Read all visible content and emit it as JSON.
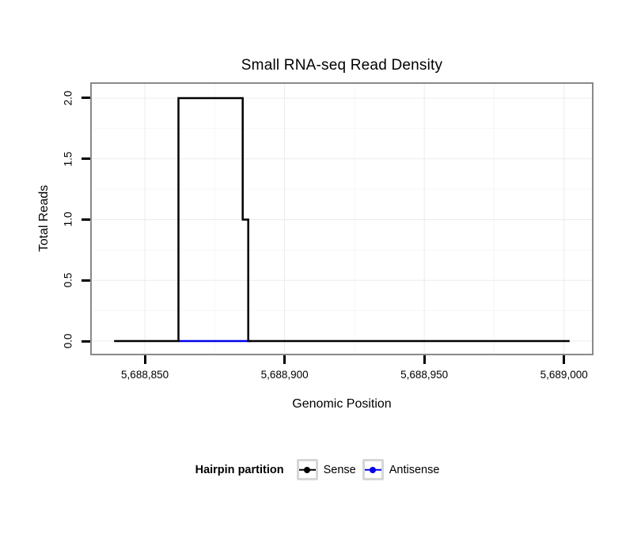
{
  "title": "Small RNA-seq Read Density",
  "axes": {
    "x_label": "Genomic Position",
    "y_label": "Total Reads"
  },
  "legend": {
    "title": "Hairpin partition",
    "items": [
      {
        "label": "Sense",
        "color": "#000000"
      },
      {
        "label": "Antisense",
        "color": "#0000EE"
      }
    ]
  },
  "chart_data": {
    "type": "line",
    "subtype": "step",
    "title": "Small RNA-seq Read Density",
    "xlabel": "Genomic Position",
    "ylabel": "Total Reads",
    "x_range": [
      5688831,
      5689010
    ],
    "y_range": [
      -0.104,
      2.117
    ],
    "x_ticks": [
      {
        "value": 5688850,
        "label": "5,688,850"
      },
      {
        "value": 5688900,
        "label": "5,688,900"
      },
      {
        "value": 5688950,
        "label": "5,688,950"
      },
      {
        "value": 5689000,
        "label": "5,689,000"
      }
    ],
    "y_ticks": [
      {
        "value": 0.0,
        "label": "0.0"
      },
      {
        "value": 0.5,
        "label": "0.5"
      },
      {
        "value": 1.0,
        "label": "1.0"
      },
      {
        "value": 1.5,
        "label": "1.5"
      },
      {
        "value": 2.0,
        "label": "2.0"
      }
    ],
    "x_minor": [
      5688875,
      5688925,
      5688975
    ],
    "y_minor": [
      0.25,
      0.75,
      1.25,
      1.75
    ],
    "grid": {
      "major_color": "#ececec",
      "minor_color": "#f6f6f6",
      "on": true
    },
    "legend_position": "bottom",
    "series": [
      {
        "name": "Antisense",
        "color": "#0000EE",
        "points": [
          [
            5688862,
            0
          ],
          [
            5688888,
            0
          ]
        ]
      },
      {
        "name": "Sense",
        "color": "#000000",
        "points": [
          [
            5688839,
            0
          ],
          [
            5688862,
            0
          ],
          [
            5688862,
            2
          ],
          [
            5688885,
            2
          ],
          [
            5688885,
            1
          ],
          [
            5688887,
            1
          ],
          [
            5688887,
            0
          ],
          [
            5689002,
            0
          ]
        ]
      }
    ]
  }
}
